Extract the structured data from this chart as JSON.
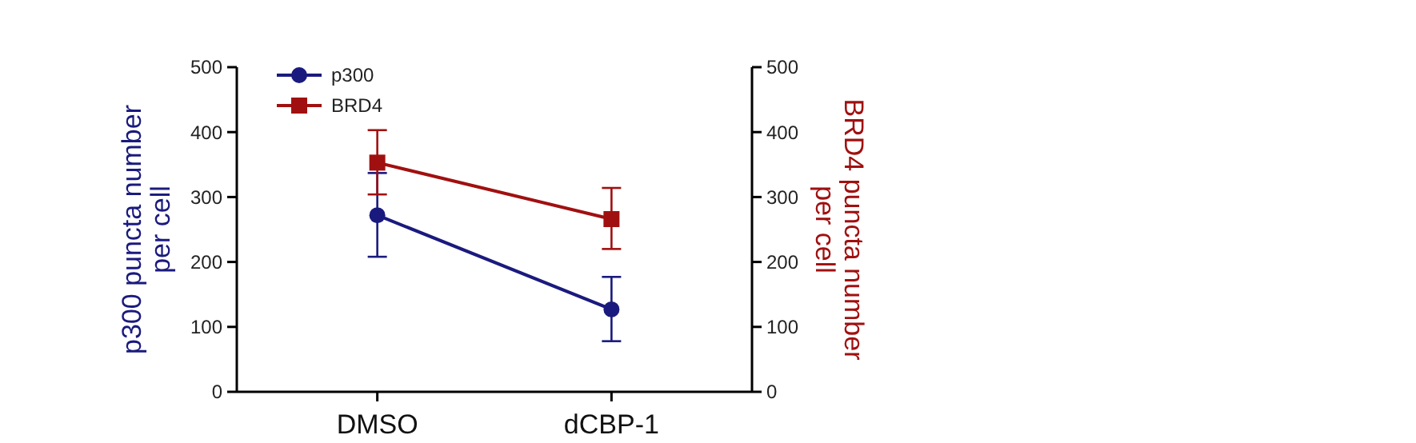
{
  "chart_data": {
    "type": "line",
    "categories": [
      "DMSO",
      "dCBP-1"
    ],
    "ylabel": "p300 puncta number per cell",
    "y2label": "BRD4 puncta number per cell",
    "ylim": [
      0,
      500
    ],
    "yticks": [
      0,
      100,
      200,
      300,
      400,
      500
    ],
    "y2lim": [
      0,
      500
    ],
    "y2ticks": [
      0,
      100,
      200,
      300,
      400,
      500
    ],
    "legend": "top left",
    "grid": false,
    "series": [
      {
        "name": "p300",
        "color": "#1a1a7e",
        "marker": "circle",
        "values": [
          272,
          127
        ],
        "errors": [
          [
            208,
            337
          ],
          [
            78,
            177
          ]
        ]
      },
      {
        "name": "BRD4",
        "color": "#a01010",
        "marker": "square",
        "axis": "y2",
        "values": [
          353,
          266
        ],
        "errors": [
          [
            304,
            403
          ],
          [
            220,
            314
          ]
        ]
      }
    ]
  }
}
